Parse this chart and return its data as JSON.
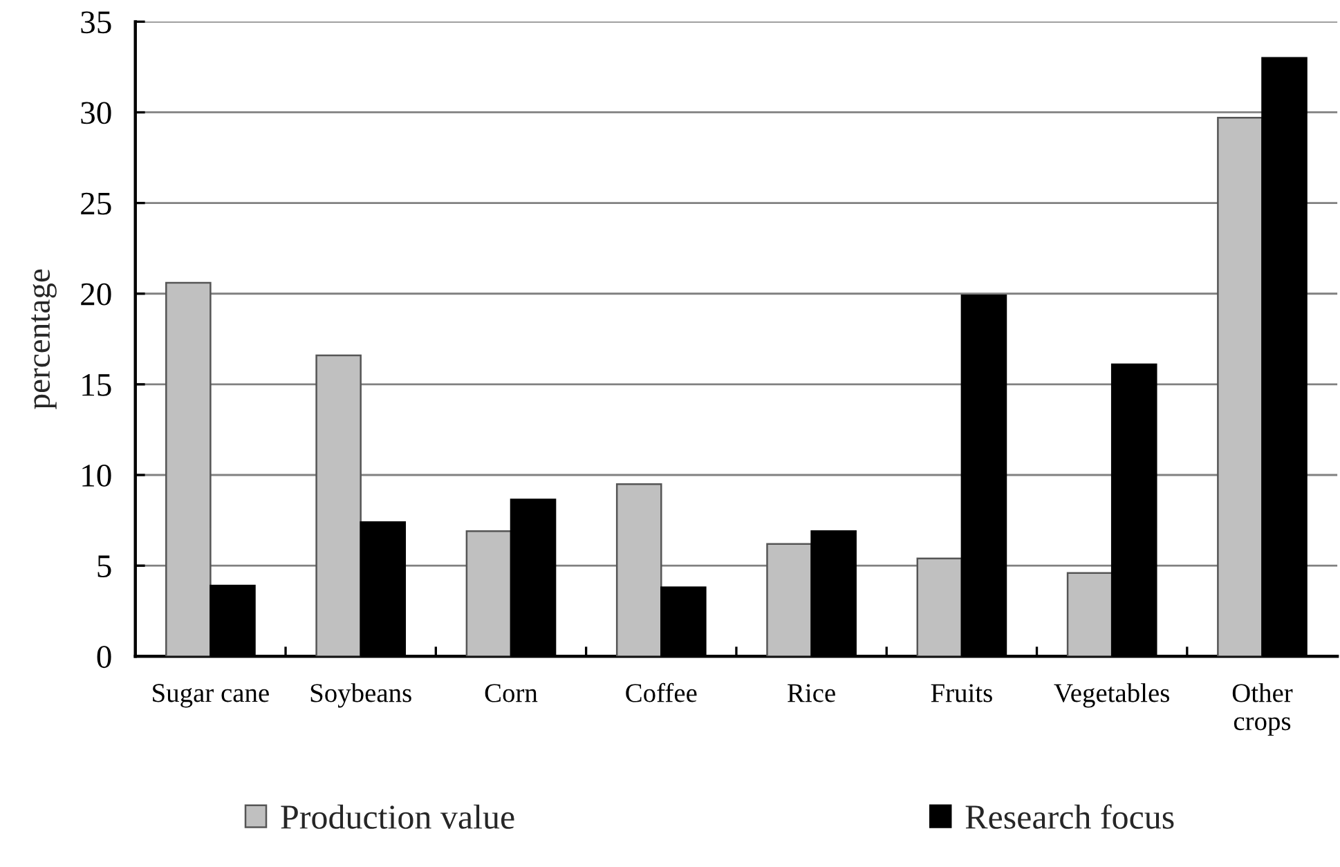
{
  "chart_data": {
    "type": "bar",
    "categories": [
      "Sugar cane",
      "Soybeans",
      "Corn",
      "Coffee",
      "Rice",
      "Fruits",
      "Vegetables",
      "Other\ncrops"
    ],
    "series": [
      {
        "name": "Production value",
        "color": "#c0c0c0",
        "values": [
          20.6,
          16.6,
          6.9,
          9.5,
          6.2,
          5.4,
          4.6,
          29.7
        ]
      },
      {
        "name": "Research focus",
        "color": "#000000",
        "values": [
          3.9,
          7.4,
          8.65,
          3.8,
          6.9,
          19.9,
          16.1,
          33.0
        ]
      }
    ],
    "ylabel": "percentage",
    "ylim": [
      0,
      35
    ],
    "yticks": [
      0,
      5,
      10,
      15,
      20,
      25,
      30,
      35
    ],
    "grid": "y",
    "legend": "bottom"
  }
}
